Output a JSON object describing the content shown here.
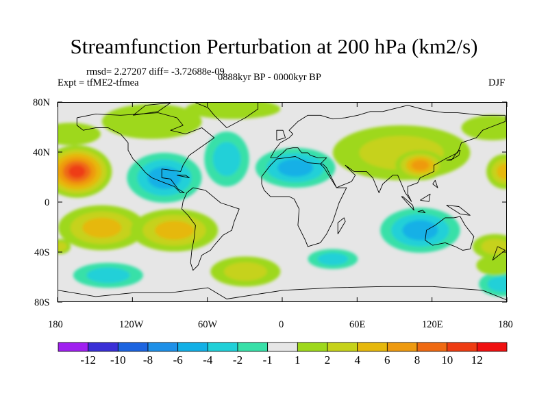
{
  "title": "Streamfunction Perturbation at 200 hPa (km2/s)",
  "stats_line": "rmsd= 2.27207 diff= -3.72688e-09",
  "experiment": "Expt = tfME2-tfmea",
  "period": "0888kyr BP - 0000kyr BP",
  "season": "DJF",
  "lat_ticks": [
    "80N",
    "40N",
    "0",
    "40S",
    "80S"
  ],
  "lon_ticks": [
    "180",
    "120W",
    "60W",
    "0",
    "60E",
    "120E",
    "180"
  ],
  "colorbar": {
    "labels": [
      "-12",
      "-10",
      "-8",
      "-6",
      "-4",
      "-2",
      "-1",
      "1",
      "2",
      "4",
      "6",
      "8",
      "10",
      "12"
    ],
    "colors": [
      "#a020f0",
      "#3a2fd6",
      "#1c64e0",
      "#1e90e8",
      "#12b0e6",
      "#20d0d8",
      "#38e0a8",
      "#e6e6e6",
      "#9ed81c",
      "#c6d21a",
      "#e6b80c",
      "#ee9a10",
      "#ef6a12",
      "#ee3c12",
      "#f01010"
    ]
  },
  "map_data": {
    "extent": {
      "lon": [
        -180,
        180
      ],
      "lat": [
        -80,
        80
      ]
    },
    "blobs": [
      {
        "lon": -165,
        "lat": 25,
        "rlon": 28,
        "rlat": 21,
        "value": 10
      },
      {
        "lon": -170,
        "lat": 55,
        "rlon": 24,
        "rlat": 9,
        "value": 1.5
      },
      {
        "lon": -105,
        "lat": 65,
        "rlon": 40,
        "rlat": 14,
        "value": 1.5
      },
      {
        "lon": -40,
        "lat": 75,
        "rlon": 38,
        "rlat": 8,
        "value": 1.5
      },
      {
        "lon": -95,
        "lat": 20,
        "rlon": 30,
        "rlat": 20,
        "value": -5
      },
      {
        "lon": -45,
        "lat": 35,
        "rlon": 18,
        "rlat": 22,
        "value": -2
      },
      {
        "lon": 10,
        "lat": 28,
        "rlon": 32,
        "rlat": 16,
        "value": -5
      },
      {
        "lon": 95,
        "lat": 40,
        "rlon": 55,
        "rlat": 22,
        "value": 3
      },
      {
        "lon": 110,
        "lat": 30,
        "rlon": 20,
        "rlat": 12,
        "value": 6
      },
      {
        "lon": 178,
        "lat": 25,
        "rlon": 15,
        "rlat": 14,
        "value": 4
      },
      {
        "lon": 168,
        "lat": 60,
        "rlon": 25,
        "rlat": 10,
        "value": 1.5
      },
      {
        "lon": -145,
        "lat": -20,
        "rlon": 35,
        "rlat": 18,
        "value": 5
      },
      {
        "lon": -87,
        "lat": -22,
        "rlon": 35,
        "rlat": 17,
        "value": 4
      },
      {
        "lon": -140,
        "lat": -58,
        "rlon": 28,
        "rlat": 10,
        "value": -2
      },
      {
        "lon": -178,
        "lat": -35,
        "rlon": 8,
        "rlat": 6,
        "value": 2
      },
      {
        "lon": -30,
        "lat": -55,
        "rlon": 28,
        "rlat": 12,
        "value": 3
      },
      {
        "lon": 40,
        "lat": -45,
        "rlon": 20,
        "rlat": 8,
        "value": -3
      },
      {
        "lon": 110,
        "lat": -22,
        "rlon": 32,
        "rlat": 18,
        "value": -5
      },
      {
        "lon": 170,
        "lat": -35,
        "rlon": 18,
        "rlat": 10,
        "value": 2
      },
      {
        "lon": 175,
        "lat": -65,
        "rlon": 18,
        "rlat": 10,
        "value": -2
      },
      {
        "lon": 170,
        "lat": -50,
        "rlon": 15,
        "rlat": 8,
        "value": 1.5
      }
    ],
    "coastlines": [
      [
        [
          -165,
          68
        ],
        [
          -150,
          71
        ],
        [
          -130,
          70
        ],
        [
          -100,
          72
        ],
        [
          -85,
          68
        ],
        [
          -80,
          62
        ],
        [
          -90,
          58
        ],
        [
          -78,
          55
        ],
        [
          -65,
          60
        ],
        [
          -55,
          52
        ],
        [
          -65,
          45
        ],
        [
          -75,
          38
        ],
        [
          -80,
          30
        ],
        [
          -82,
          25
        ],
        [
          -97,
          27
        ],
        [
          -97,
          20
        ],
        [
          -90,
          19
        ],
        [
          -87,
          15
        ],
        [
          -84,
          11
        ],
        [
          -79,
          8
        ],
        [
          -82,
          8
        ],
        [
          -87,
          13
        ],
        [
          -95,
          16
        ],
        [
          -105,
          20
        ],
        [
          -110,
          24
        ],
        [
          -115,
          30
        ],
        [
          -120,
          35
        ],
        [
          -124,
          42
        ],
        [
          -124,
          48
        ],
        [
          -130,
          55
        ],
        [
          -140,
          60
        ],
        [
          -150,
          60
        ],
        [
          -160,
          58
        ],
        [
          -165,
          62
        ],
        [
          -165,
          68
        ]
      ],
      [
        [
          -77,
          8
        ],
        [
          -72,
          12
        ],
        [
          -62,
          10
        ],
        [
          -50,
          0
        ],
        [
          -35,
          -5
        ],
        [
          -39,
          -15
        ],
        [
          -41,
          -22
        ],
        [
          -48,
          -26
        ],
        [
          -55,
          -34
        ],
        [
          -58,
          -38
        ],
        [
          -65,
          -42
        ],
        [
          -68,
          -50
        ],
        [
          -72,
          -54
        ],
        [
          -74,
          -48
        ],
        [
          -73,
          -38
        ],
        [
          -71,
          -28
        ],
        [
          -70,
          -18
        ],
        [
          -76,
          -10
        ],
        [
          -81,
          -5
        ],
        [
          -80,
          1
        ],
        [
          -77,
          8
        ]
      ],
      [
        [
          -45,
          60
        ],
        [
          -30,
          68
        ],
        [
          -20,
          75
        ],
        [
          -20,
          82
        ],
        [
          -50,
          83
        ],
        [
          -70,
          80
        ],
        [
          -60,
          76
        ],
        [
          -55,
          70
        ],
        [
          -45,
          60
        ]
      ],
      [
        [
          -10,
          36
        ],
        [
          -6,
          43
        ],
        [
          -2,
          48
        ],
        [
          5,
          52
        ],
        [
          8,
          55
        ],
        [
          5,
          58
        ],
        [
          12,
          65
        ],
        [
          20,
          70
        ],
        [
          30,
          70
        ],
        [
          40,
          67
        ],
        [
          50,
          68
        ],
        [
          60,
          70
        ],
        [
          70,
          73
        ],
        [
          80,
          73
        ],
        [
          100,
          78
        ],
        [
          115,
          74
        ],
        [
          130,
          72
        ],
        [
          140,
          72
        ],
        [
          160,
          70
        ],
        [
          178,
          70
        ],
        [
          178,
          65
        ],
        [
          165,
          60
        ],
        [
          160,
          58
        ],
        [
          155,
          52
        ],
        [
          143,
          48
        ],
        [
          140,
          40
        ],
        [
          130,
          35
        ],
        [
          121,
          30
        ],
        [
          121,
          25
        ],
        [
          110,
          20
        ],
        [
          108,
          16
        ],
        [
          100,
          13
        ],
        [
          100,
          7
        ],
        [
          103,
          1
        ],
        [
          98,
          8
        ],
        [
          95,
          15
        ],
        [
          92,
          22
        ],
        [
          88,
          22
        ],
        [
          80,
          15
        ],
        [
          77,
          8
        ],
        [
          72,
          20
        ],
        [
          67,
          25
        ],
        [
          57,
          25
        ],
        [
          50,
          30
        ],
        [
          55,
          25
        ],
        [
          58,
          22
        ],
        [
          55,
          17
        ],
        [
          45,
          13
        ],
        [
          43,
          12
        ],
        [
          38,
          20
        ],
        [
          33,
          28
        ],
        [
          30,
          31
        ],
        [
          35,
          36
        ],
        [
          28,
          36
        ],
        [
          22,
          38
        ],
        [
          20,
          40
        ],
        [
          15,
          40
        ],
        [
          12,
          44
        ],
        [
          8,
          44
        ],
        [
          3,
          43
        ],
        [
          0,
          40
        ],
        [
          -5,
          36
        ],
        [
          -10,
          36
        ]
      ],
      [
        [
          -17,
          21
        ],
        [
          -10,
          30
        ],
        [
          -5,
          35
        ],
        [
          10,
          37
        ],
        [
          20,
          32
        ],
        [
          32,
          31
        ],
        [
          35,
          28
        ],
        [
          43,
          12
        ],
        [
          51,
          12
        ],
        [
          45,
          0
        ],
        [
          40,
          -15
        ],
        [
          35,
          -25
        ],
        [
          30,
          -32
        ],
        [
          20,
          -35
        ],
        [
          18,
          -30
        ],
        [
          12,
          -18
        ],
        [
          13,
          -5
        ],
        [
          9,
          3
        ],
        [
          5,
          5
        ],
        [
          -10,
          5
        ],
        [
          -15,
          10
        ],
        [
          -17,
          15
        ],
        [
          -17,
          21
        ]
      ],
      [
        [
          115,
          -22
        ],
        [
          122,
          -18
        ],
        [
          130,
          -12
        ],
        [
          137,
          -12
        ],
        [
          142,
          -11
        ],
        [
          146,
          -18
        ],
        [
          153,
          -27
        ],
        [
          150,
          -37
        ],
        [
          144,
          -38
        ],
        [
          138,
          -35
        ],
        [
          130,
          -32
        ],
        [
          120,
          -34
        ],
        [
          114,
          -30
        ],
        [
          115,
          -22
        ]
      ],
      [
        [
          44,
          -25
        ],
        [
          50,
          -15
        ],
        [
          49,
          -12
        ],
        [
          44,
          -16
        ],
        [
          44,
          -25
        ]
      ],
      [
        [
          -180,
          -70
        ],
        [
          -150,
          -75
        ],
        [
          -120,
          -72
        ],
        [
          -90,
          -72
        ],
        [
          -60,
          -68
        ],
        [
          -45,
          -77
        ],
        [
          0,
          -70
        ],
        [
          40,
          -68
        ],
        [
          80,
          -67
        ],
        [
          120,
          -67
        ],
        [
          160,
          -70
        ],
        [
          180,
          -78
        ]
      ],
      [
        [
          -5,
          50
        ],
        [
          -5,
          58
        ],
        [
          0,
          58
        ],
        [
          2,
          52
        ],
        [
          -5,
          50
        ]
      ],
      [
        [
          131,
          34
        ],
        [
          136,
          35
        ],
        [
          141,
          38
        ],
        [
          142,
          42
        ],
        [
          140,
          41
        ],
        [
          135,
          34
        ],
        [
          131,
          34
        ]
      ],
      [
        [
          95,
          5
        ],
        [
          105,
          -6
        ],
        [
          104,
          -2
        ],
        [
          96,
          5
        ],
        [
          95,
          5
        ]
      ],
      [
        [
          108,
          -7
        ],
        [
          114,
          -8
        ],
        [
          112,
          -6
        ],
        [
          108,
          -7
        ]
      ],
      [
        [
          110,
          2
        ],
        [
          118,
          7
        ],
        [
          117,
          1
        ],
        [
          110,
          2
        ]
      ],
      [
        [
          131,
          -2
        ],
        [
          141,
          -3
        ],
        [
          150,
          -10
        ],
        [
          142,
          -9
        ],
        [
          131,
          -2
        ]
      ],
      [
        [
          120,
          15
        ],
        [
          122,
          18
        ],
        [
          124,
          12
        ],
        [
          120,
          15
        ]
      ],
      [
        [
          172,
          -35
        ],
        [
          178,
          -38
        ],
        [
          168,
          -46
        ],
        [
          172,
          -35
        ]
      ],
      [
        [
          -85,
          22
        ],
        [
          -75,
          20
        ],
        [
          -78,
          22
        ],
        [
          -85,
          22
        ]
      ],
      [
        [
          -120,
          70
        ],
        [
          -100,
          73
        ],
        [
          -90,
          80
        ],
        [
          -110,
          78
        ],
        [
          -120,
          70
        ]
      ]
    ]
  }
}
